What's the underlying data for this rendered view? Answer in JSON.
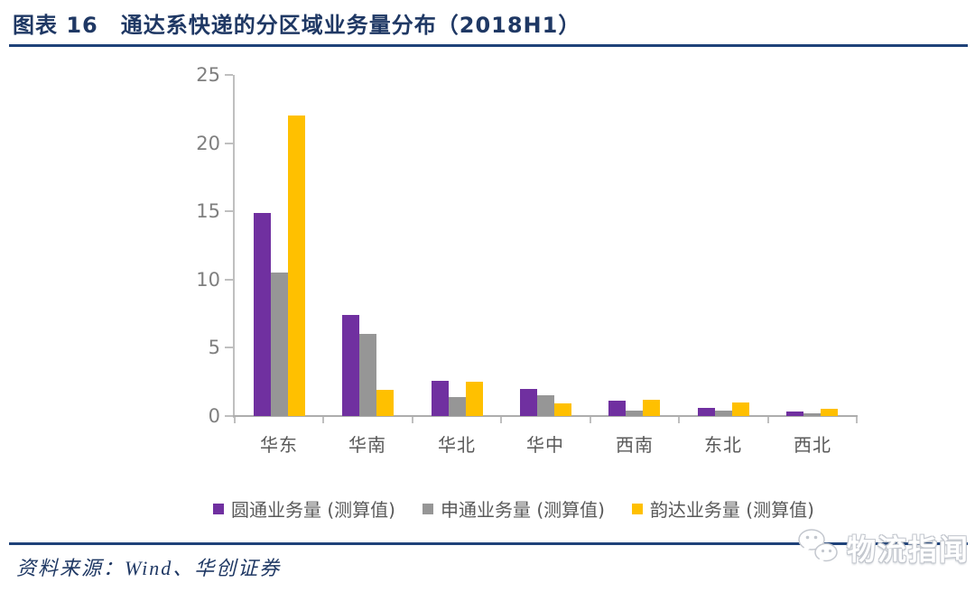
{
  "header": {
    "title": "图表 16　通达系快递的分区域业务量分布（2018H1）"
  },
  "chart_data": {
    "type": "bar",
    "categories": [
      "华东",
      "华南",
      "华北",
      "华中",
      "西南",
      "东北",
      "西北"
    ],
    "series": [
      {
        "name": "圆通业务量 (测算值)",
        "color": "#7030A0",
        "values": [
          14.9,
          7.4,
          2.6,
          2.0,
          1.1,
          0.6,
          0.3
        ]
      },
      {
        "name": "申通业务量 (测算值)",
        "color": "#969696",
        "values": [
          10.5,
          6.0,
          1.4,
          1.5,
          0.4,
          0.4,
          0.2
        ]
      },
      {
        "name": "韵达业务量 (测算值)",
        "color": "#FFC000",
        "values": [
          22.0,
          1.9,
          2.5,
          0.9,
          1.2,
          1.0,
          0.5
        ]
      }
    ],
    "ylim": [
      0,
      25
    ],
    "yticks": [
      0,
      5,
      10,
      15,
      20,
      25
    ],
    "xlabel": "",
    "ylabel": "",
    "grid": false,
    "legend_position": "bottom"
  },
  "footer": {
    "source_label": "资料来源：Wind、华创证券"
  },
  "watermark": {
    "text": "物流指闻",
    "icon": "wechat-icon"
  },
  "colors": {
    "title_navy": "#1F3864",
    "rule_navy": "#1F4279",
    "axis_gray": "#BFBFBF",
    "tick_text_gray": "#7F7F7F",
    "label_gray": "#595959",
    "series_purple": "#7030A0",
    "series_gray": "#969696",
    "series_yellow": "#FFC000"
  }
}
